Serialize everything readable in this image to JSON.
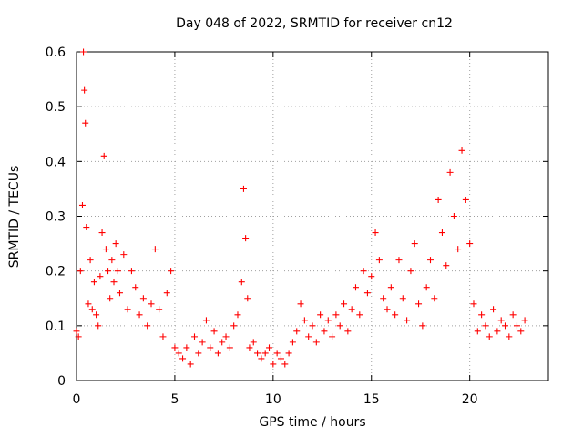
{
  "chart_data": {
    "type": "scatter",
    "title": "Day 048 of 2022, SRMTID for receiver cn12",
    "xlabel": "GPS time / hours",
    "ylabel": "SRMTID / TECUs",
    "xlim": [
      0,
      24
    ],
    "ylim": [
      0,
      0.6
    ],
    "xticks": [
      0,
      5,
      10,
      15,
      20
    ],
    "yticks": [
      0,
      0.1,
      0.2,
      0.3,
      0.4,
      0.5,
      0.6
    ],
    "grid": true,
    "marker": "+",
    "color": "#ff0000",
    "series": [
      {
        "name": "SRMTID",
        "x": [
          0.0,
          0.1,
          0.2,
          0.3,
          0.35,
          0.4,
          0.45,
          0.5,
          0.6,
          0.7,
          0.8,
          0.9,
          1.0,
          1.1,
          1.2,
          1.3,
          1.4,
          1.5,
          1.6,
          1.7,
          1.8,
          1.9,
          2.0,
          2.1,
          2.2,
          2.4,
          2.6,
          2.8,
          3.0,
          3.2,
          3.4,
          3.6,
          3.8,
          4.0,
          4.2,
          4.4,
          4.6,
          4.8,
          5.0,
          5.2,
          5.4,
          5.6,
          5.8,
          6.0,
          6.2,
          6.4,
          6.6,
          6.8,
          7.0,
          7.2,
          7.4,
          7.6,
          7.8,
          8.0,
          8.2,
          8.4,
          8.5,
          8.6,
          8.7,
          8.8,
          9.0,
          9.2,
          9.4,
          9.6,
          9.8,
          10.0,
          10.2,
          10.4,
          10.6,
          10.8,
          11.0,
          11.2,
          11.4,
          11.6,
          11.8,
          12.0,
          12.2,
          12.4,
          12.6,
          12.8,
          13.0,
          13.2,
          13.4,
          13.6,
          13.8,
          14.0,
          14.2,
          14.4,
          14.6,
          14.8,
          15.0,
          15.2,
          15.4,
          15.6,
          15.8,
          16.0,
          16.2,
          16.4,
          16.6,
          16.8,
          17.0,
          17.2,
          17.4,
          17.6,
          17.8,
          18.0,
          18.2,
          18.4,
          18.6,
          18.8,
          19.0,
          19.2,
          19.4,
          19.6,
          19.8,
          20.0,
          20.2,
          20.4,
          20.6,
          20.8,
          21.0,
          21.2,
          21.4,
          21.6,
          21.8,
          22.0,
          22.2,
          22.4,
          22.6,
          22.8
        ],
        "y": [
          0.09,
          0.08,
          0.2,
          0.32,
          0.6,
          0.53,
          0.47,
          0.28,
          0.14,
          0.22,
          0.13,
          0.18,
          0.12,
          0.1,
          0.19,
          0.27,
          0.41,
          0.24,
          0.2,
          0.15,
          0.22,
          0.18,
          0.25,
          0.2,
          0.16,
          0.23,
          0.13,
          0.2,
          0.17,
          0.12,
          0.15,
          0.1,
          0.14,
          0.24,
          0.13,
          0.08,
          0.16,
          0.2,
          0.06,
          0.05,
          0.04,
          0.06,
          0.03,
          0.08,
          0.05,
          0.07,
          0.11,
          0.06,
          0.09,
          0.05,
          0.07,
          0.08,
          0.06,
          0.1,
          0.12,
          0.18,
          0.35,
          0.26,
          0.15,
          0.06,
          0.07,
          0.05,
          0.04,
          0.05,
          0.06,
          0.03,
          0.05,
          0.04,
          0.03,
          0.05,
          0.07,
          0.09,
          0.14,
          0.11,
          0.08,
          0.1,
          0.07,
          0.12,
          0.09,
          0.11,
          0.08,
          0.12,
          0.1,
          0.14,
          0.09,
          0.13,
          0.17,
          0.12,
          0.2,
          0.16,
          0.19,
          0.27,
          0.22,
          0.15,
          0.13,
          0.17,
          0.12,
          0.22,
          0.15,
          0.11,
          0.2,
          0.25,
          0.14,
          0.1,
          0.17,
          0.22,
          0.15,
          0.33,
          0.27,
          0.21,
          0.38,
          0.3,
          0.24,
          0.42,
          0.33,
          0.25,
          0.14,
          0.09,
          0.12,
          0.1,
          0.08,
          0.13,
          0.09,
          0.11,
          0.1,
          0.08,
          0.12,
          0.1,
          0.09,
          0.11
        ]
      }
    ]
  }
}
